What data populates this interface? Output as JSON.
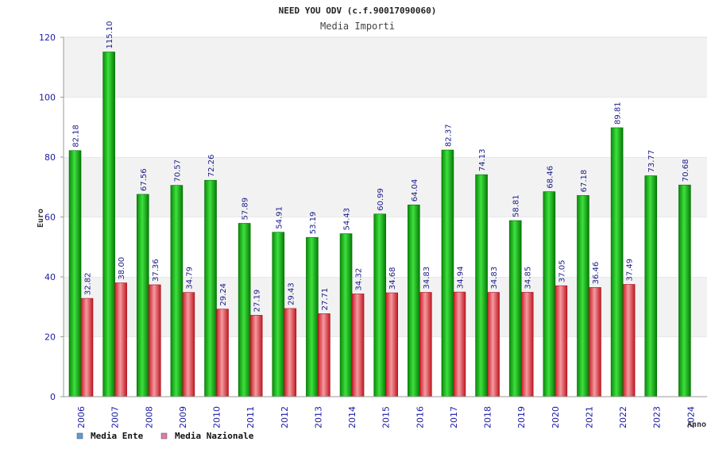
{
  "chart_data": {
    "type": "bar",
    "title": "NEED YOU ODV (c.f.90017090060)",
    "subtitle": "Media Importi",
    "xlabel": "Anno",
    "ylabel": "Euro",
    "ylim": [
      0,
      120
    ],
    "yticks": [
      0,
      20,
      40,
      60,
      80,
      100,
      120
    ],
    "grid": "alternating horizontal bands",
    "legend_position": "bottom-left",
    "categories": [
      "2006",
      "2007",
      "2008",
      "2009",
      "2010",
      "2011",
      "2012",
      "2013",
      "2014",
      "2015",
      "2016",
      "2017",
      "2018",
      "2019",
      "2020",
      "2021",
      "2022",
      "2023",
      "2024"
    ],
    "series": [
      {
        "name": "Media Ente",
        "legend_color": "#5b9bd5",
        "bar_color": "#1fbf1f",
        "values": [
          82.18,
          115.1,
          67.56,
          70.57,
          72.26,
          57.89,
          54.91,
          53.19,
          54.43,
          60.99,
          64.04,
          82.37,
          74.13,
          58.81,
          68.46,
          67.18,
          89.81,
          73.77,
          70.68
        ],
        "labels": [
          "82.18",
          "115.10",
          "67.56",
          "70.57",
          "72.26",
          "57.89",
          "54.91",
          "53.19",
          "54.43",
          "60.99",
          "64.04",
          "82.37",
          "74.13",
          "58.81",
          "68.46",
          "67.18",
          "89.81",
          "73.77",
          "70.68"
        ]
      },
      {
        "name": "Media Nazionale",
        "legend_color": "#e07aa8",
        "bar_color": "#e8424e",
        "values": [
          32.82,
          38.0,
          37.36,
          34.79,
          29.24,
          27.19,
          29.43,
          27.71,
          34.32,
          34.68,
          34.83,
          34.94,
          34.83,
          34.85,
          37.05,
          36.46,
          37.49,
          null,
          null
        ],
        "labels": [
          "32.82",
          "38.00",
          "37.36",
          "34.79",
          "29.24",
          "27.19",
          "29.43",
          "27.71",
          "34.32",
          "34.68",
          "34.83",
          "34.94",
          "34.83",
          "34.85",
          "37.05",
          "36.46",
          "37.49",
          "",
          ""
        ]
      }
    ]
  }
}
